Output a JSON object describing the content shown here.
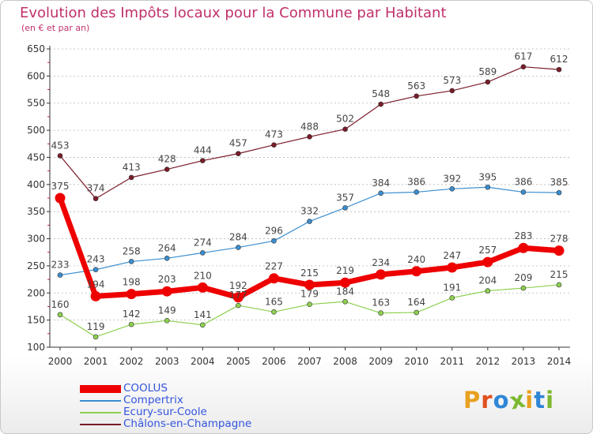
{
  "header": {
    "title": "Evolution des Impôts locaux pour la Commune par Habitant",
    "subtitle": "(en € et par an)"
  },
  "brand": {
    "text": "Proxiti",
    "colors": [
      "#e8a020",
      "#e05020",
      "#2f86d6",
      "#7cb830",
      "#e8a020",
      "#2f86d6",
      "#7cb830"
    ]
  },
  "colors": {
    "title": "#c0306c",
    "axis": "#333333",
    "grid": "#b8b8b8",
    "legend_text": "#3355dd"
  },
  "chart_data": {
    "type": "line",
    "title": "Evolution des Impôts locaux pour la Commune par Habitant",
    "subtitle": "(en € et par an)",
    "xlabel": "",
    "ylabel": "",
    "x": [
      "2000",
      "2001",
      "2002",
      "2003",
      "2004",
      "2005",
      "2006",
      "2007",
      "2008",
      "2009",
      "2010",
      "2011",
      "2012",
      "2013",
      "2014"
    ],
    "ylim": [
      100,
      650
    ],
    "yticks": [
      100,
      150,
      200,
      250,
      300,
      350,
      400,
      450,
      500,
      550,
      600,
      650
    ],
    "grid": "horizontal dashed",
    "legend_position": "bottom-left",
    "series": [
      {
        "name": "Châlons-en-Champagne",
        "color": "#7a1c28",
        "emphasis": false,
        "values": [
          453,
          374,
          413,
          428,
          444,
          457,
          473,
          488,
          502,
          548,
          563,
          573,
          589,
          617,
          612
        ]
      },
      {
        "name": "Compertrix",
        "color": "#3a8ed0",
        "emphasis": false,
        "values": [
          233,
          243,
          258,
          264,
          274,
          284,
          296,
          332,
          357,
          384,
          386,
          392,
          395,
          386,
          385
        ]
      },
      {
        "name": "Ecury-sur-Coole",
        "color": "#8ed050",
        "emphasis": false,
        "values": [
          160,
          119,
          142,
          149,
          141,
          177,
          165,
          179,
          184,
          163,
          164,
          191,
          204,
          209,
          215
        ]
      },
      {
        "name": "COOLUS",
        "color": "#ee0000",
        "emphasis": true,
        "values": [
          375,
          194,
          198,
          203,
          210,
          192,
          227,
          215,
          219,
          234,
          240,
          247,
          257,
          283,
          278
        ]
      }
    ],
    "legend": [
      "COOLUS",
      "Compertrix",
      "Ecury-sur-Coole",
      "Châlons-en-Champagne"
    ]
  }
}
